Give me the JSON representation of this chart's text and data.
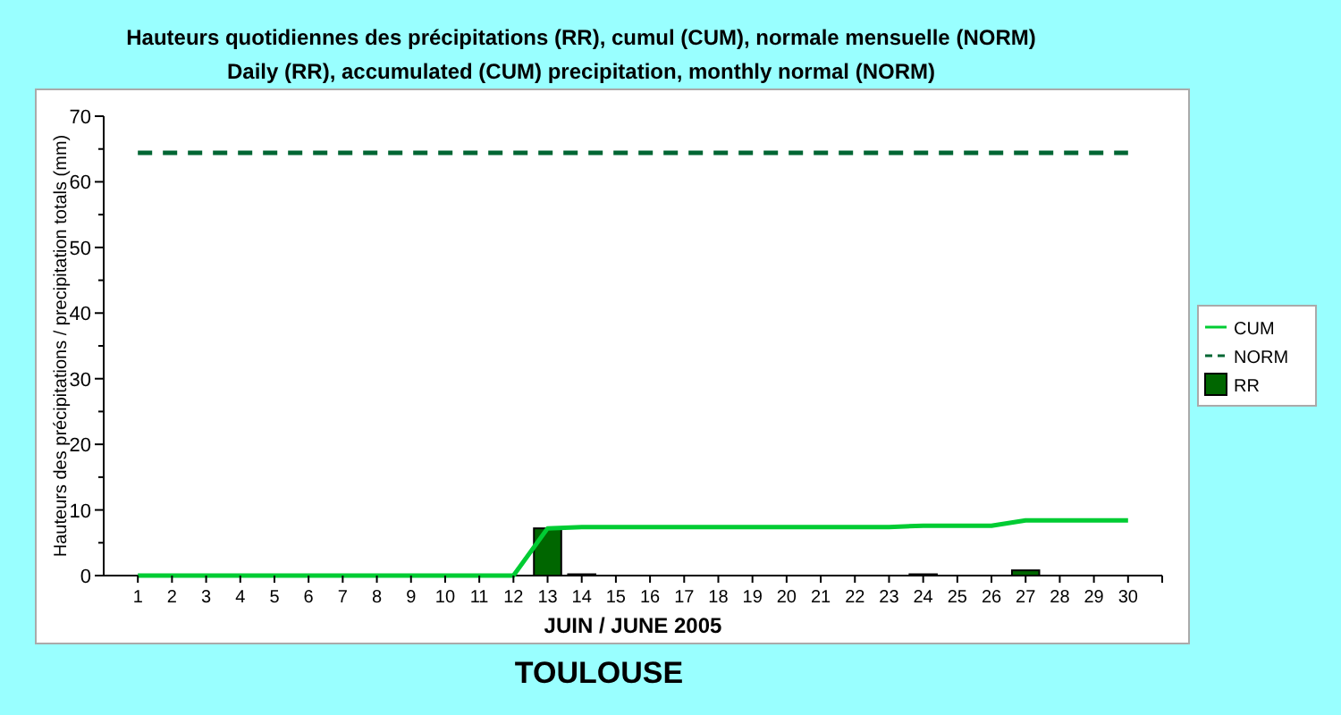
{
  "chart_data": {
    "type": "bar",
    "title": "Hauteurs quotidiennes des précipitations (RR), cumul (CUM), normale mensuelle (NORM)",
    "subtitle": "Daily (RR), accumulated (CUM) precipitation, monthly normal (NORM)",
    "xlabel": "JUIN / JUNE 2005",
    "ylabel": "Hauteurs des précipitations / precipitation totals (mm)",
    "annotations": [
      "TOULOUSE"
    ],
    "x": [
      1,
      2,
      3,
      4,
      5,
      6,
      7,
      8,
      9,
      10,
      11,
      12,
      13,
      14,
      15,
      16,
      17,
      18,
      19,
      20,
      21,
      22,
      23,
      24,
      25,
      26,
      27,
      28,
      29,
      30
    ],
    "series": [
      {
        "name": "CUM",
        "type": "line",
        "color": "#00cc33",
        "line_style": "solid",
        "values": [
          0,
          0,
          0,
          0,
          0,
          0,
          0,
          0,
          0,
          0,
          0,
          0,
          7.2,
          7.4,
          7.4,
          7.4,
          7.4,
          7.4,
          7.4,
          7.4,
          7.4,
          7.4,
          7.4,
          7.6,
          7.6,
          7.6,
          8.4,
          8.4,
          8.4,
          8.4
        ]
      },
      {
        "name": "NORM",
        "type": "line",
        "color": "#006633",
        "line_style": "dashed",
        "values": [
          64.4,
          64.4,
          64.4,
          64.4,
          64.4,
          64.4,
          64.4,
          64.4,
          64.4,
          64.4,
          64.4,
          64.4,
          64.4,
          64.4,
          64.4,
          64.4,
          64.4,
          64.4,
          64.4,
          64.4,
          64.4,
          64.4,
          64.4,
          64.4,
          64.4,
          64.4,
          64.4,
          64.4,
          64.4,
          64.4
        ]
      },
      {
        "name": "RR",
        "color": "#006600",
        "values": [
          0,
          0,
          0,
          0,
          0,
          0,
          0,
          0,
          0,
          0,
          0,
          0,
          7.2,
          0.2,
          0,
          0,
          0,
          0,
          0,
          0,
          0,
          0,
          0,
          0.2,
          0,
          0,
          0.8,
          0,
          0,
          0
        ]
      }
    ],
    "xlim": [
      0,
      31
    ],
    "xticks": [
      1,
      2,
      3,
      4,
      5,
      6,
      7,
      8,
      9,
      10,
      11,
      12,
      13,
      14,
      15,
      16,
      17,
      18,
      19,
      20,
      21,
      22,
      23,
      24,
      25,
      26,
      27,
      28,
      29,
      30
    ],
    "ylim": [
      0,
      70
    ],
    "yticks": [
      0,
      {
        "value": 5,
        "label": null
      },
      10,
      {
        "value": 15,
        "label": null
      },
      20,
      {
        "value": 25,
        "label": null
      },
      30,
      {
        "value": 35,
        "label": null
      },
      40,
      {
        "value": 45,
        "label": null
      },
      50,
      {
        "value": 55,
        "label": null
      },
      60,
      {
        "value": 65,
        "label": null
      },
      70
    ],
    "grid": false,
    "legend": "right"
  }
}
